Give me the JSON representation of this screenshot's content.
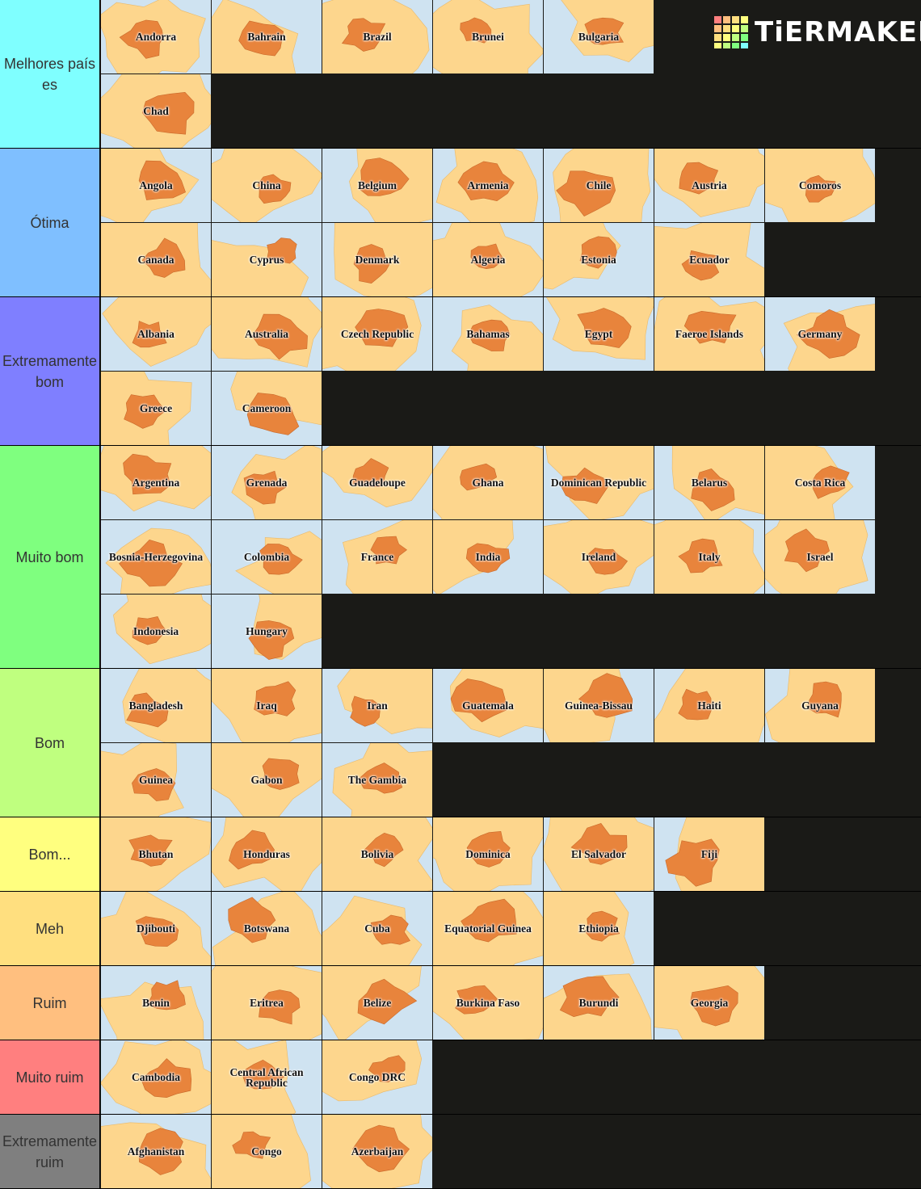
{
  "logo": "TiERMAKER",
  "tiers": [
    {
      "label": "Melhores países",
      "color": "#7fffff",
      "items": [
        "Andorra",
        "Bahrain",
        "Brazil",
        "Brunei",
        "Bulgaria",
        "Chad"
      ]
    },
    {
      "label": "Ótima",
      "color": "#7fbfff",
      "items": [
        "Angola",
        "China",
        "Belgium",
        "Armenia",
        "Chile",
        "Austria",
        "Comoros",
        "Canada",
        "Cyprus",
        "Denmark",
        "Algeria",
        "Estonia",
        "Ecuador"
      ]
    },
    {
      "label": "Extremamente bom",
      "color": "#7f7fff",
      "items": [
        "Albania",
        "Australia",
        "Czech Republic",
        "Bahamas",
        "Egypt",
        "Faeroe Islands",
        "Germany",
        "Greece",
        "Cameroon"
      ]
    },
    {
      "label": "Muito bom",
      "color": "#7fff7f",
      "items": [
        "Argentina",
        "Grenada",
        "Guadeloupe",
        "Ghana",
        "Dominican Republic",
        "Belarus",
        "Costa Rica",
        "Bosnia-Herzegovina",
        "Colombia",
        "France",
        "India",
        "Ireland",
        "Italy",
        "Israel",
        "Indonesia",
        "Hungary"
      ]
    },
    {
      "label": "Bom",
      "color": "#bfff7f",
      "items": [
        "Bangladesh",
        "Iraq",
        "Iran",
        "Guatemala",
        "Guinea-Bissau",
        "Haiti",
        "Guyana",
        "Guinea",
        "Gabon",
        "The Gambia"
      ]
    },
    {
      "label": "Bom...",
      "color": "#ffff7f",
      "items": [
        "Bhutan",
        "Honduras",
        "Bolivia",
        "Dominica",
        "El Salvador",
        "Fiji"
      ]
    },
    {
      "label": "Meh",
      "color": "#ffdf7f",
      "items": [
        "Djibouti",
        "Botswana",
        "Cuba",
        "Equatorial Guinea",
        "Ethiopia"
      ]
    },
    {
      "label": "Ruim",
      "color": "#ffbf7f",
      "items": [
        "Benin",
        "Eritrea",
        "Belize",
        "Burkina Faso",
        "Burundi",
        "Georgia"
      ]
    },
    {
      "label": "Muito ruim",
      "color": "#ff7f7f",
      "items": [
        "Cambodia",
        "Central African Republic",
        "Congo DRC"
      ]
    },
    {
      "label": "Extremamente ruim",
      "color": "#7f7f7f",
      "items": [
        "Afghanistan",
        "Congo",
        "Azerbaijan"
      ]
    }
  ]
}
